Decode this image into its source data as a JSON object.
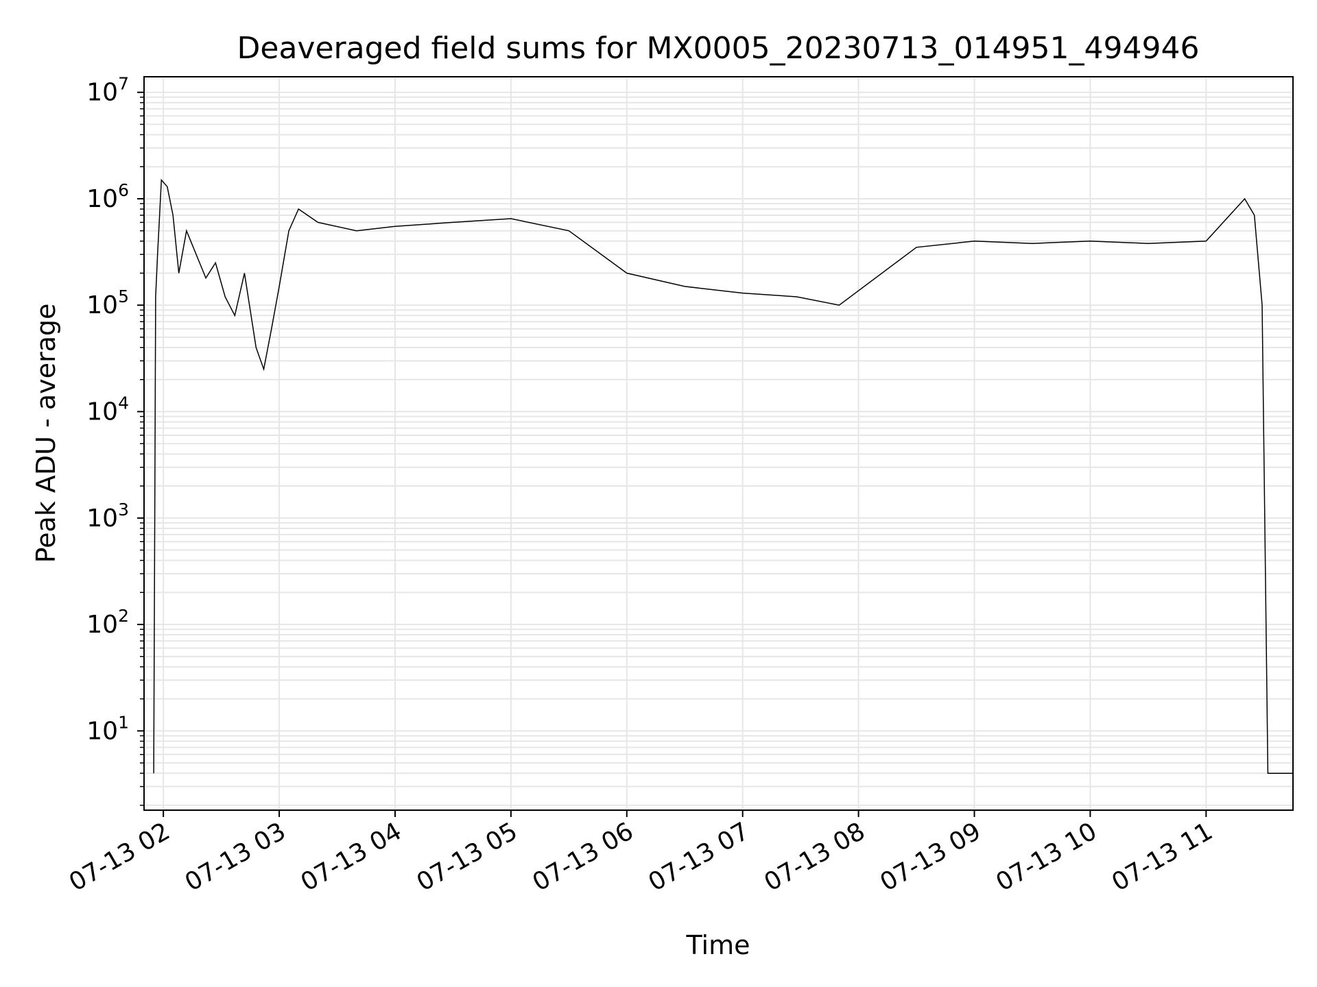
{
  "chart_data": {
    "type": "line",
    "title": "Deaveraged field sums for MX0005_20230713_014951_494946",
    "xlabel": "Time",
    "ylabel": "Peak ADU - average",
    "yscale": "log",
    "xlim": [
      "2023-07-13T01:50",
      "2023-07-13T11:45"
    ],
    "ylim": [
      1.8,
      14000000
    ],
    "grid": true,
    "x_ticks": [
      {
        "t": "2023-07-13T02:00",
        "label": "07-13 02"
      },
      {
        "t": "2023-07-13T03:00",
        "label": "07-13 03"
      },
      {
        "t": "2023-07-13T04:00",
        "label": "07-13 04"
      },
      {
        "t": "2023-07-13T05:00",
        "label": "07-13 05"
      },
      {
        "t": "2023-07-13T06:00",
        "label": "07-13 06"
      },
      {
        "t": "2023-07-13T07:00",
        "label": "07-13 07"
      },
      {
        "t": "2023-07-13T08:00",
        "label": "07-13 08"
      },
      {
        "t": "2023-07-13T09:00",
        "label": "07-13 09"
      },
      {
        "t": "2023-07-13T10:00",
        "label": "07-13 10"
      },
      {
        "t": "2023-07-13T11:00",
        "label": "07-13 11"
      }
    ],
    "y_ticks": [
      {
        "v": 10,
        "base": "10",
        "exp": "1"
      },
      {
        "v": 100,
        "base": "10",
        "exp": "2"
      },
      {
        "v": 1000,
        "base": "10",
        "exp": "3"
      },
      {
        "v": 10000,
        "base": "10",
        "exp": "4"
      },
      {
        "v": 100000,
        "base": "10",
        "exp": "5"
      },
      {
        "v": 1000000,
        "base": "10",
        "exp": "6"
      },
      {
        "v": 10000000,
        "base": "10",
        "exp": "7"
      }
    ],
    "line_color": "#000000",
    "grid_color": "#e6e6e6",
    "series": [
      {
        "points": [
          [
            "2023-07-13T01:55",
            4
          ],
          [
            "2023-07-13T01:56",
            120000
          ],
          [
            "2023-07-13T01:57",
            300000
          ],
          [
            "2023-07-13T01:59",
            1500000
          ],
          [
            "2023-07-13T02:02",
            1300000
          ],
          [
            "2023-07-13T02:05",
            700000
          ],
          [
            "2023-07-13T02:08",
            200000
          ],
          [
            "2023-07-13T02:12",
            500000
          ],
          [
            "2023-07-13T02:17",
            300000
          ],
          [
            "2023-07-13T02:22",
            180000
          ],
          [
            "2023-07-13T02:27",
            250000
          ],
          [
            "2023-07-13T02:32",
            120000
          ],
          [
            "2023-07-13T02:37",
            80000
          ],
          [
            "2023-07-13T02:42",
            200000
          ],
          [
            "2023-07-13T02:48",
            40000
          ],
          [
            "2023-07-13T02:52",
            25000
          ],
          [
            "2023-07-13T02:56",
            60000
          ],
          [
            "2023-07-13T03:00",
            150000
          ],
          [
            "2023-07-13T03:05",
            500000
          ],
          [
            "2023-07-13T03:10",
            800000
          ],
          [
            "2023-07-13T03:20",
            600000
          ],
          [
            "2023-07-13T03:40",
            500000
          ],
          [
            "2023-07-13T04:00",
            550000
          ],
          [
            "2023-07-13T04:30",
            600000
          ],
          [
            "2023-07-13T05:00",
            650000
          ],
          [
            "2023-07-13T05:30",
            500000
          ],
          [
            "2023-07-13T06:00",
            200000
          ],
          [
            "2023-07-13T06:30",
            150000
          ],
          [
            "2023-07-13T07:00",
            130000
          ],
          [
            "2023-07-13T07:28",
            120000
          ],
          [
            "2023-07-13T07:50",
            100000
          ],
          [
            "2023-07-13T08:30",
            350000
          ],
          [
            "2023-07-13T09:00",
            400000
          ],
          [
            "2023-07-13T09:30",
            380000
          ],
          [
            "2023-07-13T10:00",
            400000
          ],
          [
            "2023-07-13T10:30",
            380000
          ],
          [
            "2023-07-13T11:00",
            400000
          ],
          [
            "2023-07-13T11:20",
            1000000
          ],
          [
            "2023-07-13T11:25",
            700000
          ],
          [
            "2023-07-13T11:29",
            100000
          ],
          [
            "2023-07-13T11:32",
            4
          ],
          [
            "2023-07-13T11:45",
            4
          ]
        ]
      }
    ]
  }
}
